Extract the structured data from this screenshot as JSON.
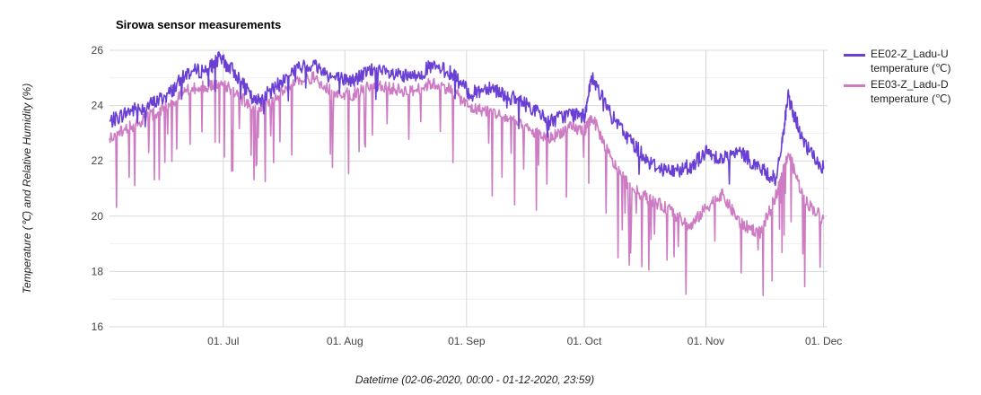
{
  "chart_data": {
    "type": "line",
    "title": "Sirowa sensor measurements",
    "ylabel": "Temperature (℃) and Relative Humidity (%)",
    "xlabel": "Datetime (02-06-2020, 00:00 - 01-12-2020, 23:59)",
    "xlim": [
      "2020-06-02",
      "2020-12-01"
    ],
    "ylim": [
      16,
      26
    ],
    "y_ticks": [
      16,
      18,
      20,
      22,
      24,
      26
    ],
    "x_ticks": [
      {
        "label": "01. Jul",
        "date": "2020-07-01"
      },
      {
        "label": "01. Aug",
        "date": "2020-08-01"
      },
      {
        "label": "01. Sep",
        "date": "2020-09-01"
      },
      {
        "label": "01. Oct",
        "date": "2020-10-01"
      },
      {
        "label": "01. Nov",
        "date": "2020-11-01"
      },
      {
        "label": "01. Dec",
        "date": "2020-12-01"
      }
    ],
    "grid": true,
    "legend_position": "right",
    "series": [
      {
        "name": "EE02-Z_Ladu-U temperature (℃)",
        "color": "#6a3fd4",
        "x": [
          "2020-06-02",
          "2020-06-07",
          "2020-06-12",
          "2020-06-17",
          "2020-06-22",
          "2020-06-27",
          "2020-06-30",
          "2020-07-04",
          "2020-07-09",
          "2020-07-14",
          "2020-07-19",
          "2020-07-24",
          "2020-07-29",
          "2020-08-03",
          "2020-08-08",
          "2020-08-13",
          "2020-08-18",
          "2020-08-23",
          "2020-08-28",
          "2020-09-02",
          "2020-09-07",
          "2020-09-12",
          "2020-09-17",
          "2020-09-22",
          "2020-09-27",
          "2020-10-01",
          "2020-10-03",
          "2020-10-08",
          "2020-10-13",
          "2020-10-18",
          "2020-10-23",
          "2020-10-28",
          "2020-11-01",
          "2020-11-05",
          "2020-11-10",
          "2020-11-15",
          "2020-11-19",
          "2020-11-22",
          "2020-11-26",
          "2020-12-01"
        ],
        "y": [
          23.4,
          23.8,
          24.0,
          24.4,
          25.2,
          25.3,
          25.7,
          25.2,
          24.1,
          24.6,
          25.3,
          25.5,
          25.0,
          24.9,
          25.3,
          25.1,
          25.0,
          25.4,
          25.2,
          24.4,
          24.7,
          24.3,
          24.0,
          23.4,
          23.7,
          23.6,
          25.0,
          23.6,
          22.7,
          21.9,
          21.6,
          21.8,
          22.3,
          22.1,
          22.3,
          21.7,
          21.3,
          24.3,
          22.6,
          21.7
        ]
      },
      {
        "name": "EE03-Z_Ladu-D temperature (℃)",
        "color": "#cd7cc4",
        "x": [
          "2020-06-02",
          "2020-06-07",
          "2020-06-12",
          "2020-06-17",
          "2020-06-22",
          "2020-06-27",
          "2020-06-30",
          "2020-07-04",
          "2020-07-09",
          "2020-07-14",
          "2020-07-19",
          "2020-07-24",
          "2020-07-29",
          "2020-08-03",
          "2020-08-08",
          "2020-08-13",
          "2020-08-18",
          "2020-08-23",
          "2020-08-28",
          "2020-09-02",
          "2020-09-07",
          "2020-09-12",
          "2020-09-17",
          "2020-09-22",
          "2020-09-27",
          "2020-10-01",
          "2020-10-03",
          "2020-10-08",
          "2020-10-13",
          "2020-10-18",
          "2020-10-23",
          "2020-10-28",
          "2020-11-01",
          "2020-11-05",
          "2020-11-10",
          "2020-11-15",
          "2020-11-19",
          "2020-11-22",
          "2020-11-26",
          "2020-12-01"
        ],
        "y": [
          22.8,
          23.2,
          23.6,
          24.0,
          24.6,
          24.7,
          24.8,
          24.5,
          23.8,
          24.2,
          24.9,
          25.0,
          24.5,
          24.4,
          24.8,
          24.6,
          24.5,
          24.8,
          24.6,
          23.9,
          23.8,
          23.5,
          23.1,
          22.8,
          23.2,
          23.1,
          23.6,
          22.0,
          21.0,
          20.6,
          20.2,
          19.6,
          20.3,
          20.8,
          19.7,
          19.4,
          20.8,
          22.3,
          20.6,
          19.9
        ]
      }
    ]
  }
}
